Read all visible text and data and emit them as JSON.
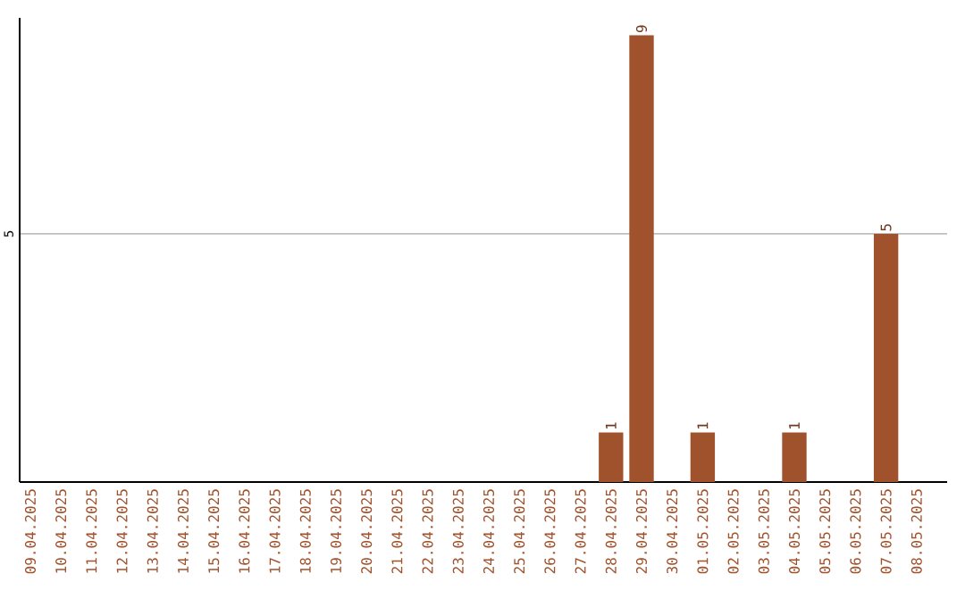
{
  "chart_data": {
    "type": "bar",
    "categories": [
      "09.04.2025",
      "10.04.2025",
      "11.04.2025",
      "12.04.2025",
      "13.04.2025",
      "14.04.2025",
      "15.04.2025",
      "16.04.2025",
      "17.04.2025",
      "18.04.2025",
      "19.04.2025",
      "20.04.2025",
      "21.04.2025",
      "22.04.2025",
      "23.04.2025",
      "24.04.2025",
      "25.04.2025",
      "26.04.2025",
      "27.04.2025",
      "28.04.2025",
      "29.04.2025",
      "30.04.2025",
      "01.05.2025",
      "02.05.2025",
      "03.05.2025",
      "04.05.2025",
      "05.05.2025",
      "06.05.2025",
      "07.05.2025",
      "08.05.2025"
    ],
    "values": [
      null,
      null,
      null,
      null,
      null,
      null,
      null,
      null,
      null,
      null,
      null,
      null,
      null,
      null,
      null,
      null,
      null,
      null,
      null,
      1,
      9,
      null,
      1,
      null,
      null,
      1,
      null,
      null,
      5,
      null
    ],
    "data_labels": true,
    "color": "#a0522d",
    "ylim": [
      0,
      9.35
    ],
    "yticks": [
      5
    ],
    "grid": "y"
  }
}
